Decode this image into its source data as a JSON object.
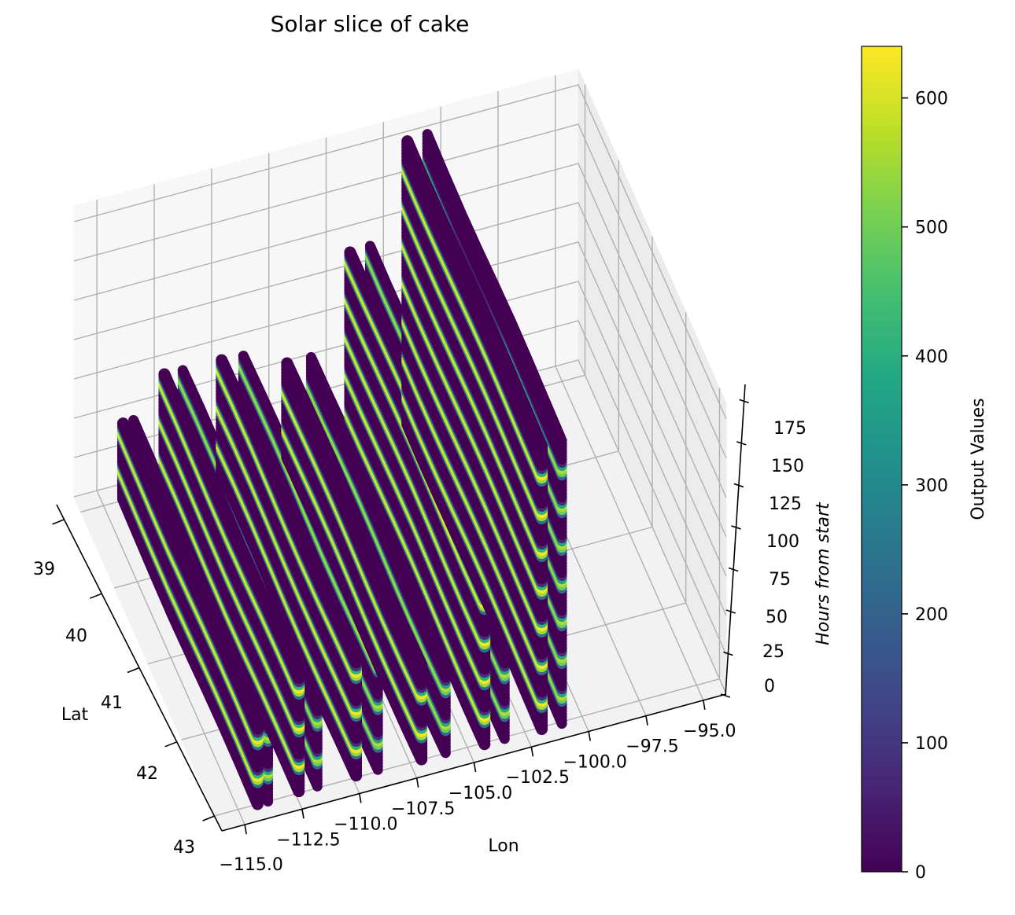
{
  "chart_data": {
    "type": "scatter",
    "projection": "3d",
    "title": "Solar slice of cake",
    "xlabel": "Lon",
    "ylabel": "Lat",
    "zlabel": "Hours from start",
    "x_ticks": [
      "−115.0",
      "−112.5",
      "−110.0",
      "−107.5",
      "−105.0",
      "−102.5",
      "−100.0",
      "−97.5",
      "−95.0"
    ],
    "y_ticks": [
      "39",
      "40",
      "41",
      "42",
      "43"
    ],
    "z_ticks": [
      "0",
      "25",
      "50",
      "75",
      "100",
      "125",
      "150",
      "175"
    ],
    "xlim": [
      -116,
      -94
    ],
    "ylim": [
      38.8,
      43.2
    ],
    "zlim": [
      0,
      185
    ],
    "colorbar": {
      "label": "Output Values",
      "ticks": [
        "0",
        "100",
        "200",
        "300",
        "400",
        "500",
        "600"
      ],
      "range": [
        0,
        640
      ],
      "colormap": "viridis"
    },
    "grid": true,
    "series": [
      {
        "lon_range": [
          -114.8,
          -113.5
        ],
        "lat_range": [
          39.0,
          43.0
        ],
        "hours": [
          0,
          48
        ]
      },
      {
        "lon_range": [
          -113.5,
          -111.2
        ],
        "lat_range": [
          39.0,
          43.0
        ],
        "hours": [
          0,
          72
        ]
      },
      {
        "lon_range": [
          -111.2,
          -108.5
        ],
        "lat_range": [
          39.0,
          43.0
        ],
        "hours": [
          0,
          72
        ]
      },
      {
        "lon_range": [
          -108.5,
          -105.5
        ],
        "lat_range": [
          39.0,
          43.0
        ],
        "hours": [
          0,
          60
        ]
      },
      {
        "lon_range": [
          -105.5,
          -103.0
        ],
        "lat_range": [
          39.0,
          43.0
        ],
        "hours": [
          0,
          120
        ]
      },
      {
        "lon_range": [
          -103.0,
          -100.5
        ],
        "lat_range": [
          39.0,
          43.0
        ],
        "hours": [
          0,
          180
        ]
      }
    ]
  }
}
